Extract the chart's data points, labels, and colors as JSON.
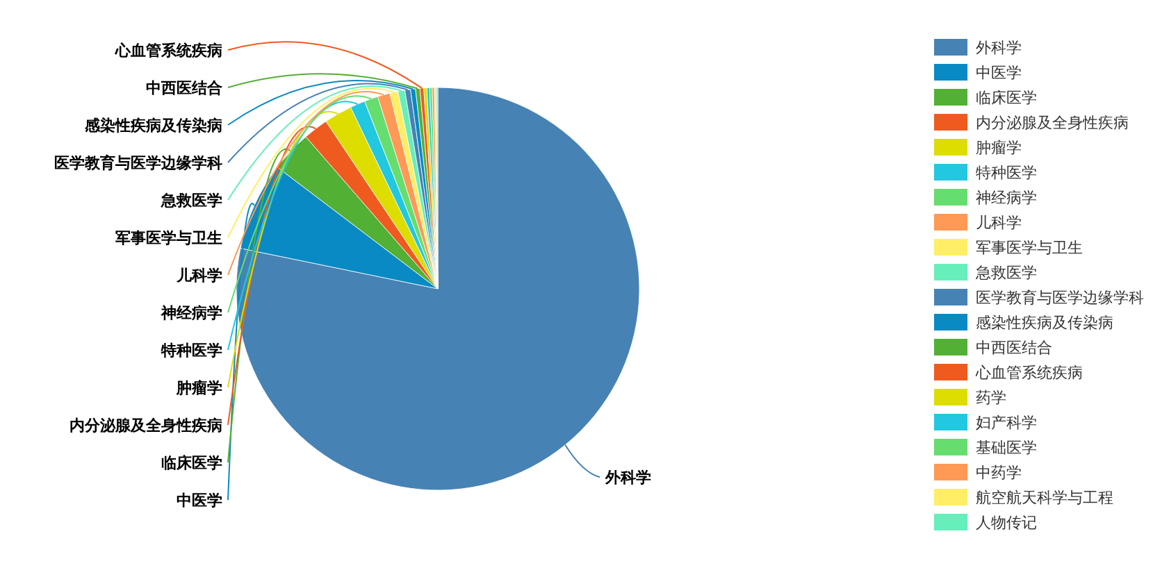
{
  "chart_data": {
    "type": "pie",
    "categories": [
      "外科学",
      "中医学",
      "临床医学",
      "内分泌腺及全身性疾病",
      "肿瘤学",
      "特种医学",
      "神经病学",
      "儿科学",
      "军事医学与卫生",
      "急救医学",
      "医学教育与医学边缘学科",
      "感染性疾病及传染病",
      "中西医结合",
      "心血管系统疾病",
      "药学",
      "妇产科学",
      "基础医学",
      "中药学",
      "航空航天科学与工程",
      "人物传记"
    ],
    "values": [
      78.23,
      7.1,
      3.3,
      2.0,
      2.25,
      1.2,
      1.1,
      1.0,
      0.65,
      0.55,
      0.45,
      0.4,
      0.35,
      0.3,
      0.25,
      0.22,
      0.2,
      0.18,
      0.15,
      0.12
    ],
    "colors": [
      "#4682b4",
      "#0a8ac4",
      "#52b034",
      "#ef5a1f",
      "#dddd00",
      "#22c7e0",
      "#66dd6f",
      "#ff9955",
      "#ffee66",
      "#66eebb",
      "#4682b4",
      "#0a8ac4",
      "#52b034",
      "#ef5a1f",
      "#dddd00",
      "#22c7e0",
      "#66dd6f",
      "#ff9955",
      "#ffee66",
      "#66eebb"
    ],
    "legend": "right"
  }
}
